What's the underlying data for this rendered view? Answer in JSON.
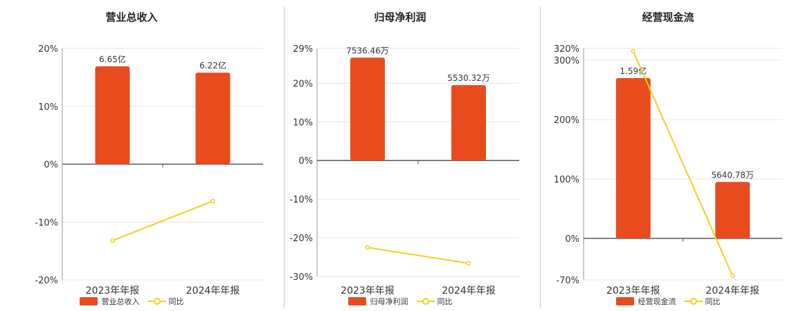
{
  "colors": {
    "bar": "#e84c1e",
    "line": "#f2cf1b",
    "axis": "#555555",
    "grid": "#e6e6e6"
  },
  "chart_data": [
    {
      "type": "bar",
      "title": "营业总收入",
      "categories": [
        "2023年年报",
        "2024年年报"
      ],
      "bar_series": {
        "name": "营业总收入",
        "values": [
          16.9,
          15.8
        ],
        "labels": [
          "6.65亿",
          "6.22亿"
        ]
      },
      "line_series": {
        "name": "同比",
        "values": [
          -13.2,
          -6.4
        ]
      },
      "y_ticks": [
        20,
        10,
        0,
        -10,
        -20
      ],
      "y_tick_labels": [
        "20%",
        "10%",
        "0%",
        "-10%",
        "-20%"
      ],
      "ylim": [
        -20,
        20
      ],
      "grid": true,
      "legend": "bottom"
    },
    {
      "type": "bar",
      "title": "归母净利润",
      "categories": [
        "2023年年报",
        "2024年年报"
      ],
      "bar_series": {
        "name": "归母净利润",
        "values": [
          26.6,
          19.5
        ],
        "labels": [
          "7536.46万",
          "5530.32万"
        ]
      },
      "line_series": {
        "name": "同比",
        "values": [
          -22.5,
          -26.6
        ]
      },
      "y_ticks": [
        29,
        20,
        10,
        0,
        -10,
        -20,
        -30
      ],
      "y_tick_labels": [
        "29%",
        "20%",
        "10%",
        "0%",
        "-10%",
        "-20%",
        "-30%"
      ],
      "ylim": [
        -30,
        29
      ],
      "grid": true,
      "legend": "bottom"
    },
    {
      "type": "bar",
      "title": "经营现金流",
      "categories": [
        "2023年年报",
        "2024年年报"
      ],
      "bar_series": {
        "name": "经营现金流",
        "values": [
          270,
          95
        ],
        "labels": [
          "1.59亿",
          "5640.78万"
        ]
      },
      "line_series": {
        "name": "同比",
        "values": [
          315,
          -63
        ]
      },
      "y_ticks": [
        320,
        300,
        200,
        100,
        0,
        -70
      ],
      "y_tick_labels": [
        "320%",
        "300%",
        "200%",
        "100%",
        "0%",
        "-70%"
      ],
      "ylim": [
        -70,
        320
      ],
      "grid": true,
      "legend": "bottom"
    }
  ]
}
